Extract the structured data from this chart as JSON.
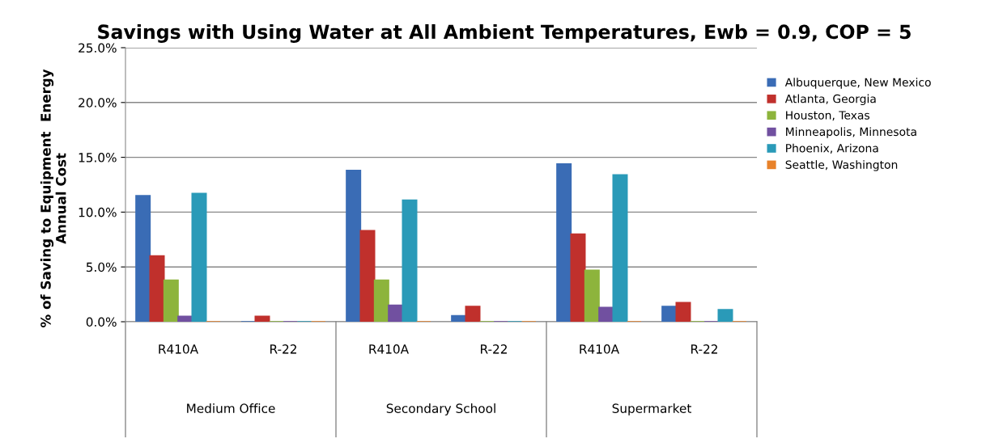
{
  "chart_data": {
    "type": "bar",
    "title": "Savings with Using Water at All Ambient Temperatures, Ewb = 0.9, COP = 5",
    "ylabel": "% of Saving to Equipment  Energy\nAnnual Cost",
    "categories": [
      "R410A",
      "R-22",
      "R410A",
      "R-22",
      "R410A",
      "R-22"
    ],
    "annotations": [
      "Medium Office",
      "Secondary School",
      "Supermarket"
    ],
    "series": [
      {
        "name": "Albuquerque, New Mexico",
        "color": "#3a6cb5",
        "values": [
          11.5,
          0,
          13.8,
          0.55,
          14.4,
          1.4
        ]
      },
      {
        "name": "Atlanta, Georgia",
        "color": "#c0302c",
        "values": [
          6.0,
          0.5,
          8.3,
          1.4,
          8.0,
          1.75
        ]
      },
      {
        "name": "Houston, Texas",
        "color": "#8db43c",
        "values": [
          3.8,
          0,
          3.8,
          0,
          4.7,
          0
        ]
      },
      {
        "name": "Minneapolis, Minnesota",
        "color": "#7150a0",
        "values": [
          0.5,
          0,
          1.5,
          0,
          1.3,
          0
        ]
      },
      {
        "name": "Phoenix, Arizona",
        "color": "#2a9ab8",
        "values": [
          11.7,
          0,
          11.1,
          0,
          13.4,
          1.1
        ]
      },
      {
        "name": "Seattle, Washington",
        "color": "#e8822a",
        "values": [
          0,
          0,
          0,
          0,
          0,
          0
        ]
      }
    ],
    "ylim": [
      0,
      25
    ],
    "yticks": [
      {
        "value": 0,
        "label": "0.0%"
      },
      {
        "value": 5,
        "label": "5.0%"
      },
      {
        "value": 10,
        "label": "10.0%"
      },
      {
        "value": 15,
        "label": "15.0%"
      },
      {
        "value": 20,
        "label": "20.0%"
      },
      {
        "value": 25,
        "label": "25.0%"
      }
    ],
    "grid": "y",
    "legend": "right"
  }
}
